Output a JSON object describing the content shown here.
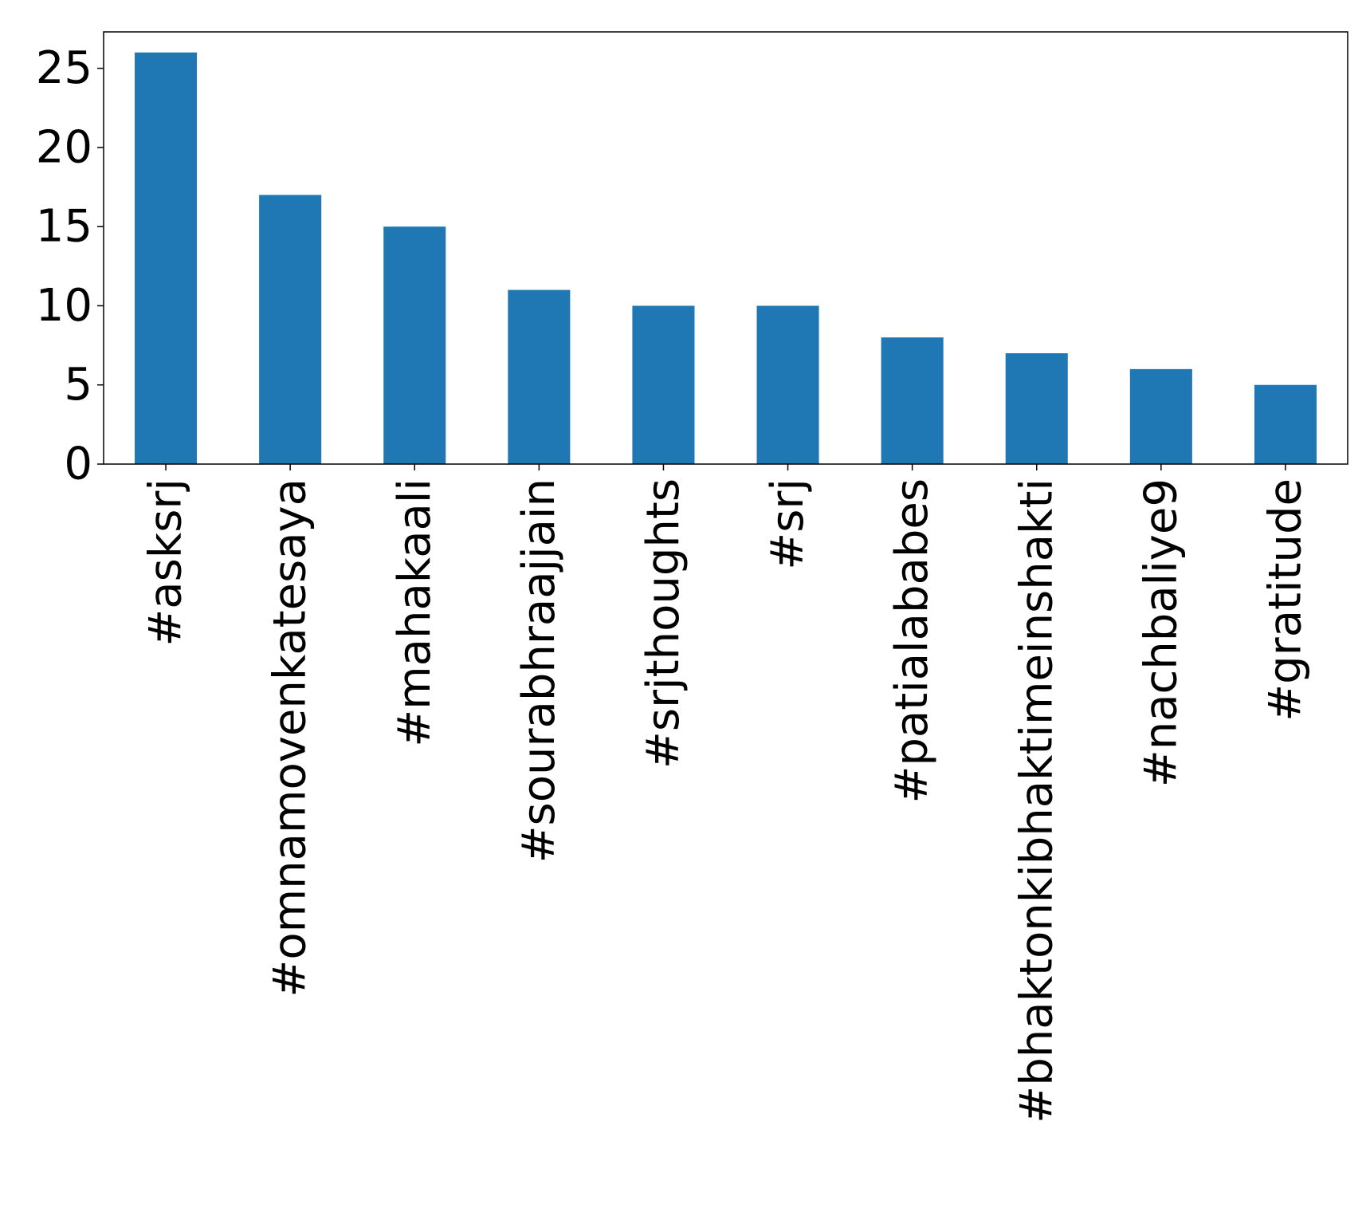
{
  "chart_data": {
    "type": "bar",
    "title": "",
    "xlabel": "",
    "ylabel": "",
    "categories": [
      "#asksrj",
      "#omnamovenkatesaya",
      "#mahakaali",
      "#sourabhraajjain",
      "#srjthoughts",
      "#srj",
      "#patialababes",
      "#bhaktonkibhaktimeinshakti",
      "#nachbaliye9",
      "#gratitude"
    ],
    "values": [
      26,
      17,
      15,
      11,
      10,
      10,
      8,
      7,
      6,
      5
    ],
    "ylim": [
      0,
      27.3
    ],
    "yticks": [
      0,
      5,
      10,
      15,
      20,
      25
    ],
    "grid": false,
    "bar_color": "#1f77b4",
    "legend": false
  }
}
